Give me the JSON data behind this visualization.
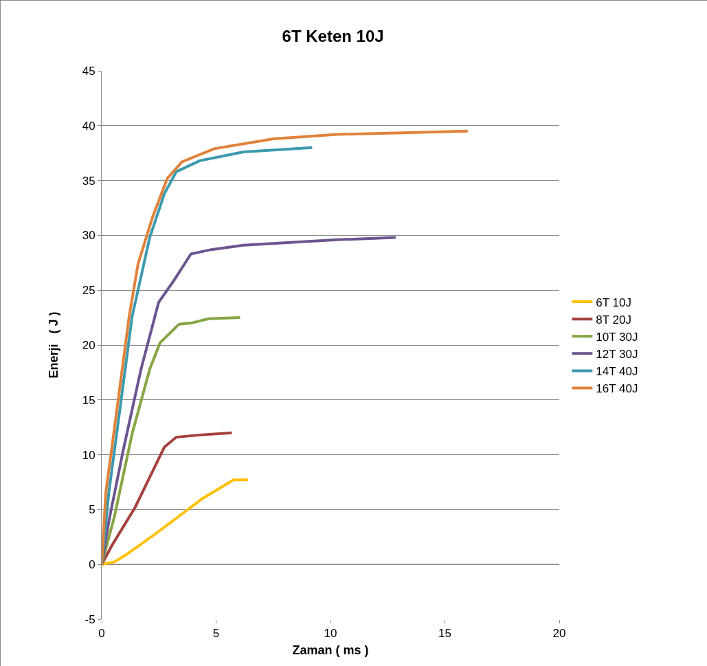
{
  "chart_data": {
    "type": "line",
    "title": "6T Keten 10J",
    "xlabel": "Zaman ( ms )",
    "ylabel": "Enerji   ( J )",
    "xlim": [
      0,
      20
    ],
    "xticks": [
      0,
      5,
      10,
      15,
      20
    ],
    "ylim": [
      -5,
      45
    ],
    "yticks": [
      -5,
      0,
      5,
      10,
      15,
      20,
      25,
      30,
      35,
      40,
      45
    ],
    "grid": "y",
    "legend": "right",
    "marker": "none",
    "line_style": "solid",
    "series": [
      {
        "name": "6T 10J",
        "color": "#ffc000",
        "x": [
          0,
          0.56,
          1.08,
          2.36,
          3.38,
          4.4,
          5.76,
          6.4
        ],
        "values": [
          0,
          0.24,
          0.9,
          2.8,
          4.4,
          6.0,
          7.7,
          7.7
        ]
      },
      {
        "name": "8T 20J",
        "color": "#a5403d",
        "x": [
          0,
          0.44,
          1.46,
          2.74,
          3.26,
          4.28,
          5.69
        ],
        "values": [
          0,
          1.7,
          5.2,
          10.7,
          11.6,
          11.8,
          12.0
        ]
      },
      {
        "name": "10T 30J",
        "color": "#86a544",
        "x": [
          0,
          0.56,
          1.33,
          2.1,
          2.55,
          3.38,
          3.9,
          4.67,
          6.05
        ],
        "values": [
          0,
          4.4,
          11.9,
          17.8,
          20.2,
          21.9,
          22.0,
          22.4,
          22.5
        ]
      },
      {
        "name": "12T 30J",
        "color": "#6c558f",
        "x": [
          0,
          0.31,
          0.95,
          1.72,
          2.49,
          3.13,
          3.9,
          4.79,
          6.2,
          10.3,
          12.85
        ],
        "values": [
          0,
          3.9,
          10.5,
          17.8,
          23.9,
          25.8,
          28.3,
          28.7,
          29.1,
          29.6,
          29.8
        ]
      },
      {
        "name": "14T 40J",
        "color": "#3c9aae",
        "x": [
          0,
          0.31,
          0.82,
          1.33,
          2.1,
          2.74,
          3.26,
          4.28,
          6.2,
          9.2
        ],
        "values": [
          0,
          6.5,
          14.5,
          22.6,
          29.8,
          33.8,
          35.8,
          36.8,
          37.6,
          38.0
        ]
      },
      {
        "name": "16T 40J",
        "color": "#e0823a",
        "x": [
          0,
          0.18,
          0.69,
          1.2,
          1.59,
          2.23,
          2.87,
          3.51,
          4.92,
          7.5,
          10.3,
          16.0
        ],
        "values": [
          0,
          6.5,
          14.5,
          22.6,
          27.4,
          31.7,
          35.2,
          36.7,
          37.9,
          38.8,
          39.2,
          39.5
        ]
      }
    ]
  }
}
